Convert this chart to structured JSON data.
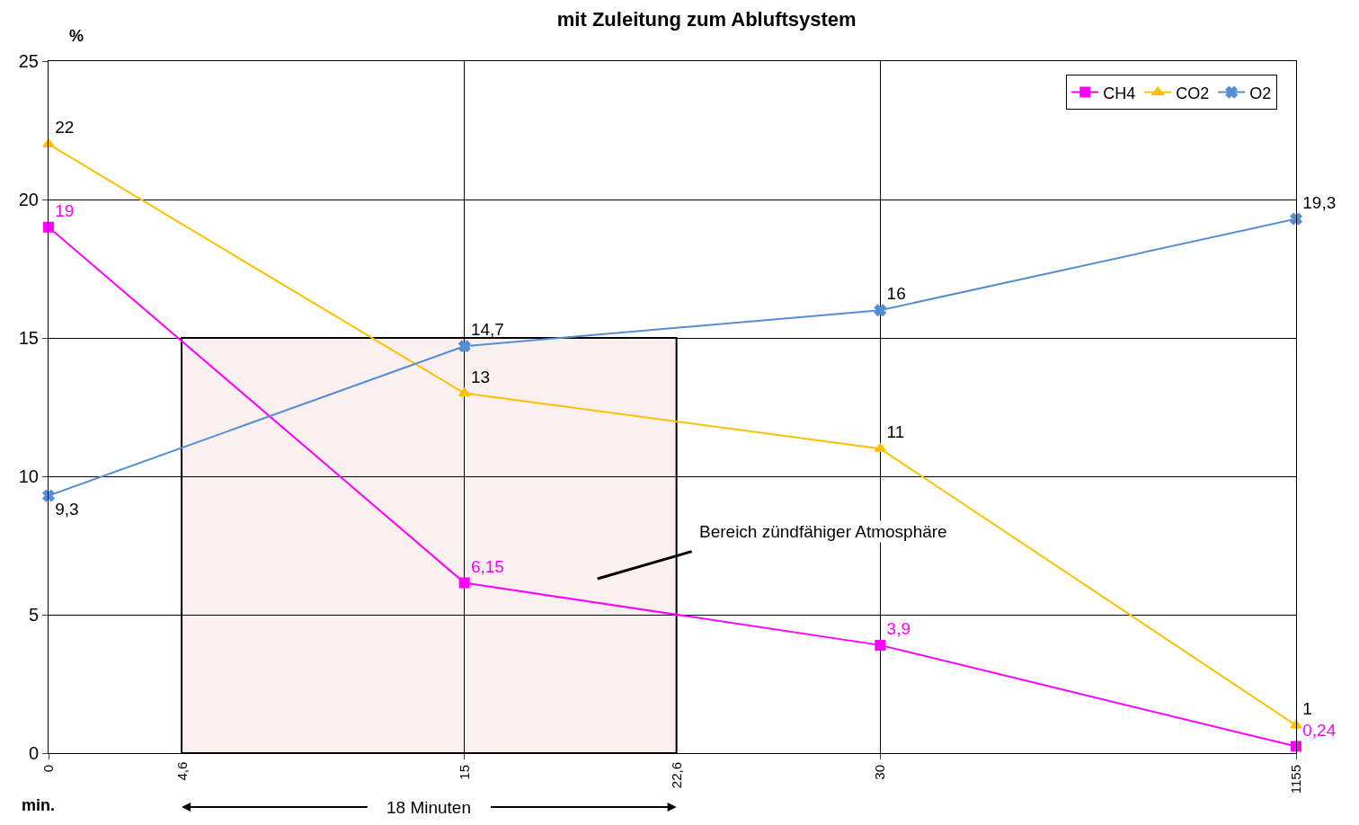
{
  "chart_data": {
    "type": "line",
    "title": "mit Zuleitung zum Abluftsystem",
    "xlabel": "min.",
    "ylabel": "%",
    "categories": [
      "0",
      "15",
      "30",
      "1155"
    ],
    "series": [
      {
        "name": "CH4",
        "color": "#ff00ff",
        "marker": "square",
        "values": [
          19,
          6.15,
          3.9,
          0.24
        ],
        "value_labels": [
          "19",
          "6,15",
          "3,9",
          "0,24"
        ]
      },
      {
        "name": "CO2",
        "color": "#ffc000",
        "marker": "triangle",
        "values": [
          22,
          13,
          11,
          1
        ],
        "value_labels": [
          "22",
          "13",
          "11",
          "1"
        ]
      },
      {
        "name": "O2",
        "color": "#558ed5",
        "marker": "cross",
        "values": [
          9.3,
          14.7,
          16,
          19.3
        ],
        "value_labels": [
          "9,3",
          "14,7",
          "16",
          "19,3"
        ]
      }
    ],
    "ylim": [
      0,
      25
    ],
    "yticks": [
      0,
      5,
      10,
      15,
      20,
      25
    ],
    "grid": true,
    "legend": "top right",
    "bands": [
      {
        "axis": "y",
        "from": 0,
        "to": 15,
        "color": "#000000"
      }
    ],
    "annotations": [
      "Bereich zündfähiger Atmosphäre",
      "4,6",
      "22,6",
      "18 Minuten"
    ]
  }
}
